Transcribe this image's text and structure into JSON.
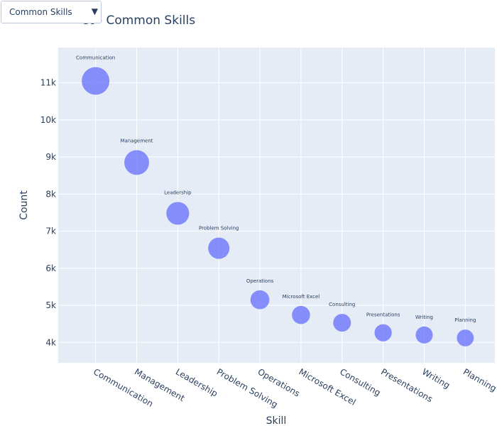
{
  "dropdown": {
    "selected": "Common Skills",
    "arrow_icon": "triangle-down-icon"
  },
  "title_visible": "st - Common Skills",
  "chart_data": {
    "type": "scatter",
    "mode": "markers+text",
    "title": "st - Common Skills",
    "xlabel": "Skill",
    "ylabel": "Count",
    "categories": [
      "Communication",
      "Management",
      "Leadership",
      "Problem Solving",
      "Operations",
      "Microsoft Excel",
      "Consulting",
      "Presentations",
      "Writing",
      "Planning"
    ],
    "values": [
      11050,
      8850,
      7480,
      6540,
      5150,
      4740,
      4530,
      4260,
      4200,
      4120
    ],
    "ylim": [
      3450,
      11950
    ],
    "yticks": [
      4000,
      5000,
      6000,
      7000,
      8000,
      9000,
      10000,
      11000
    ],
    "ytick_labels": [
      "4k",
      "5k",
      "6k",
      "7k",
      "8k",
      "9k",
      "10k",
      "11k"
    ],
    "grid": true,
    "marker_color": "#636efa",
    "plot_bg": "#e5ecf6"
  }
}
